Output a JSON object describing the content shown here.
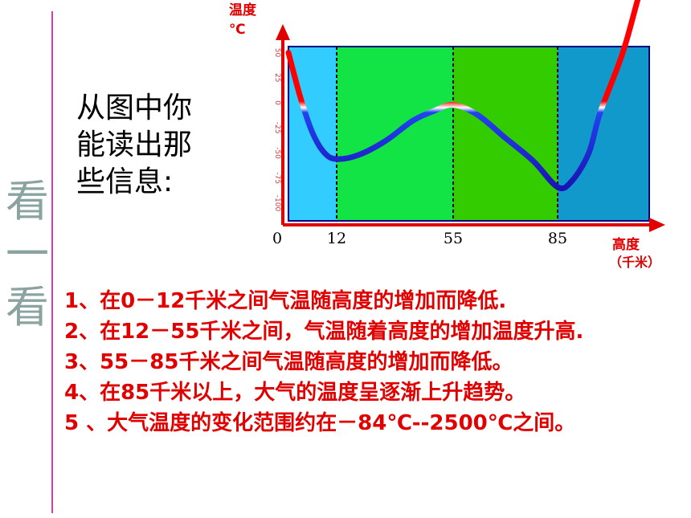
{
  "side_title": [
    "看",
    "一",
    "看"
  ],
  "question": [
    "从图中你",
    "能读出那",
    "些信息:"
  ],
  "answers": [
    "1、在0－12千米之间气温随高度的增加而降低.",
    "2、在12－55千米之间，气温随着高度的增加温度升高.",
    "3、55－85千米之间气温随高度的增加而降低。",
    "4、在85千米以上，大气的温度呈逐渐上升趋势。",
    "5 、大气温度的变化范围约在－84℃--2500℃之间。"
  ],
  "chart_data": {
    "type": "line",
    "ylabel": "温度",
    "yunit": "℃",
    "xlabel": "高度",
    "xunit": "（千米）",
    "x_ticks": [
      0,
      12,
      55,
      85
    ],
    "boundaries": [
      12,
      55,
      85
    ],
    "ylim": [
      -120,
      120
    ],
    "y_tick_values": [
      50,
      25,
      0,
      -25,
      -50,
      -75,
      -100
    ],
    "y_tick_labels": [
      "50",
      "25",
      "0",
      "-25",
      "-50",
      "-75",
      "-100"
    ],
    "series": [
      {
        "x": [
          0,
          3,
          6,
          9,
          12,
          20,
          30,
          40,
          48,
          55,
          62,
          70,
          78,
          85,
          90,
          96,
          100,
          108,
          114,
          125
        ],
        "y": [
          50,
          5,
          -30,
          -50,
          -56,
          -52,
          -38,
          -18,
          -8,
          -2,
          -12,
          -35,
          -58,
          -84,
          -78,
          -50,
          -10,
          50,
          110,
          220
        ]
      }
    ],
    "layer_colors": [
      "#33ccff",
      "#11e444",
      "#33cc00",
      "#1199cc"
    ]
  }
}
